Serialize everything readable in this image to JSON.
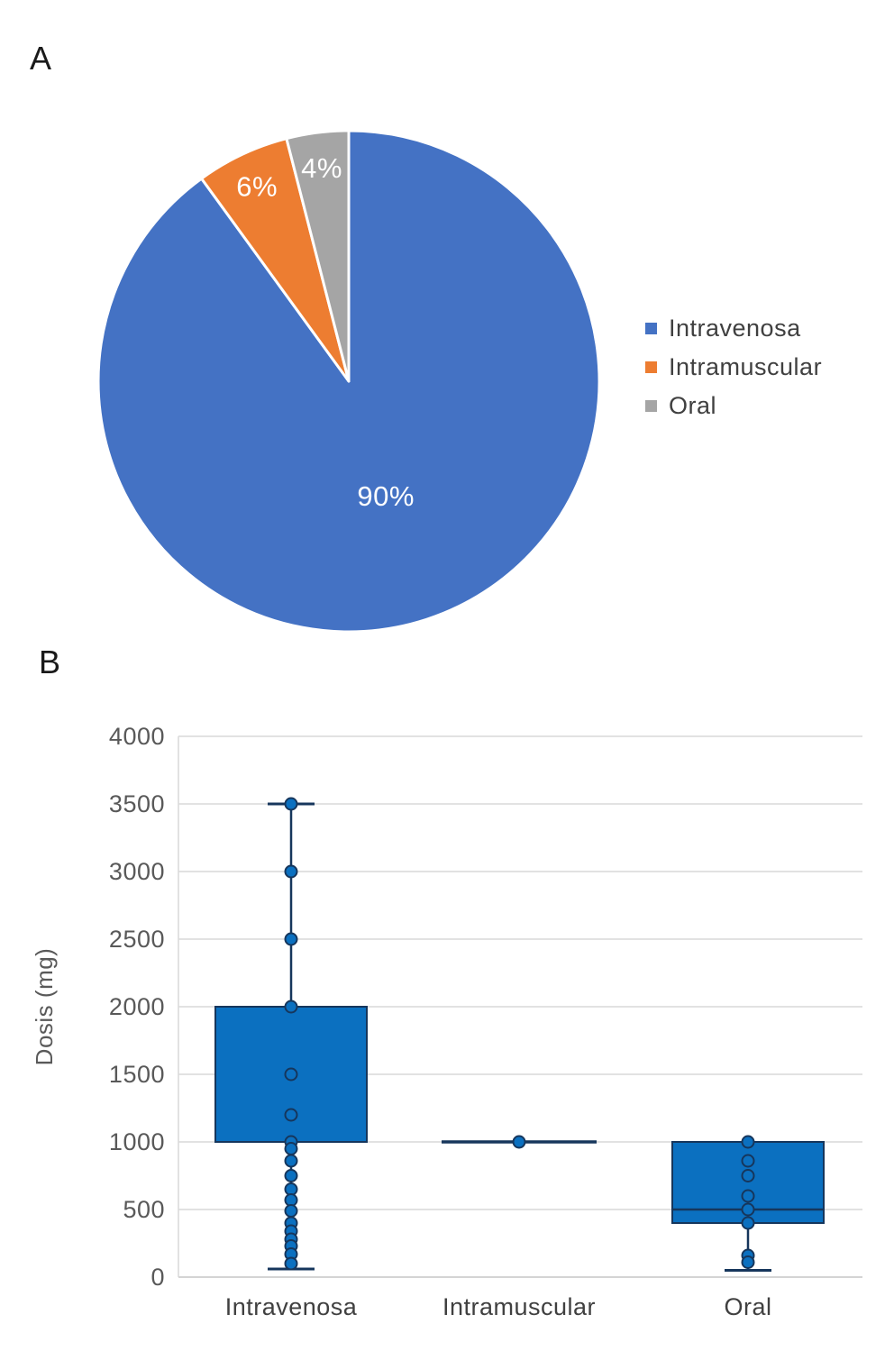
{
  "panels": {
    "a": "A",
    "b": "B"
  },
  "chart_data": [
    {
      "type": "pie",
      "panel": "A",
      "categories": [
        "Intravenosa",
        "Intramuscular",
        "Oral"
      ],
      "values": [
        90,
        6,
        4
      ],
      "data_labels": [
        "90%",
        "6%",
        "4%"
      ],
      "colors": [
        "#4472C4",
        "#ED7D31",
        "#A5A5A5"
      ],
      "data_label_color": "#FFFFFF",
      "legend_position": "right",
      "legend_text_color": "#404040"
    },
    {
      "type": "box",
      "panel": "B",
      "ylabel": "Dosis (mg)",
      "ylim": [
        0,
        4000
      ],
      "yticks": [
        0,
        500,
        1000,
        1500,
        2000,
        2500,
        3000,
        3500,
        4000
      ],
      "grid": true,
      "categories": [
        "Intravenosa",
        "Intramuscular",
        "Oral"
      ],
      "series": [
        {
          "name": "Intravenosa",
          "q1": 1000,
          "median": 1000,
          "q3": 2000,
          "whisker_min": 60,
          "whisker_max": 3500,
          "points": [
            3500,
            3000,
            2500,
            2000,
            1500,
            1200,
            1000,
            950,
            860,
            750,
            650,
            570,
            490,
            400,
            340,
            280,
            230,
            170,
            100
          ]
        },
        {
          "name": "Intramuscular",
          "q1": 1000,
          "median": 1000,
          "q3": 1000,
          "whisker_min": 1000,
          "whisker_max": 1000,
          "points": [
            1000
          ]
        },
        {
          "name": "Oral",
          "q1": 400,
          "median": 500,
          "q3": 1000,
          "whisker_min": 50,
          "whisker_max": 1000,
          "points": [
            1000,
            860,
            750,
            600,
            500,
            400,
            160,
            110
          ]
        }
      ],
      "colors": {
        "box_fill": "#0B70C0",
        "box_stroke": "#16365C",
        "grid": "#D9D9D9",
        "axis": "#C6C6C6",
        "tick_text": "#595959",
        "category_text": "#404040"
      }
    }
  ]
}
